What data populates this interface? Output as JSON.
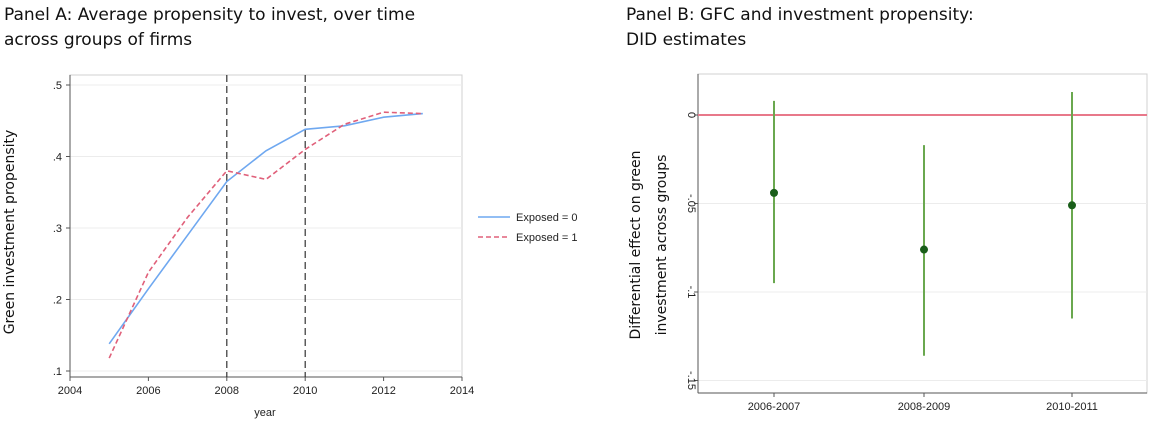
{
  "panel_a": {
    "title_line1": "Panel A: Average propensity to invest, over time",
    "title_line2": "across groups of firms"
  },
  "panel_b": {
    "title_line1": "Panel B: GFC and investment propensity:",
    "title_line2": "DID estimates"
  },
  "colors": {
    "exposed0": "#6fa8f0",
    "exposed1": "#e0607a",
    "estimate_line": "#6aa84f",
    "estimate_dot": "#1a5e1a",
    "zero_line": "#e8788a"
  },
  "chart_data": [
    {
      "type": "line",
      "xlabel": "year",
      "ylabel": "Green investment propensity",
      "xlim": [
        2004,
        2014
      ],
      "ylim": [
        0.1,
        0.5
      ],
      "x_ticks": [
        "2004",
        "2006",
        "2008",
        "2010",
        "2012",
        "2014"
      ],
      "y_ticks": [
        ".1",
        ".2",
        ".3",
        ".4",
        ".5"
      ],
      "vertical_reference_lines": [
        2008,
        2010
      ],
      "legend_position": "right",
      "x": [
        2005,
        2006,
        2007,
        2008,
        2009,
        2010,
        2011,
        2012,
        2013
      ],
      "series": [
        {
          "name": "Exposed = 0",
          "style": "solid",
          "values": [
            0.138,
            0.215,
            0.29,
            0.365,
            0.408,
            0.438,
            0.443,
            0.455,
            0.46
          ]
        },
        {
          "name": "Exposed = 1",
          "style": "dashed",
          "values": [
            0.118,
            0.238,
            0.315,
            0.38,
            0.368,
            0.41,
            0.445,
            0.462,
            0.46
          ]
        }
      ],
      "grid": true
    },
    {
      "type": "scatter",
      "subtype": "point-estimate with confidence interval",
      "ylabel_line1": "Differential effect on green",
      "ylabel_line2": "investment across groups",
      "categories": [
        "2006-2007",
        "2008-2009",
        "2010-2011"
      ],
      "estimates": [
        -0.044,
        -0.076,
        -0.051
      ],
      "ci_low": [
        -0.095,
        -0.136,
        -0.115
      ],
      "ci_high": [
        0.008,
        -0.017,
        0.013
      ],
      "ylim": [
        -0.15,
        0.015
      ],
      "y_ticks": [
        "0",
        "-.05",
        "-.1",
        "-.15"
      ],
      "reference_line_y": 0,
      "grid": true
    }
  ]
}
